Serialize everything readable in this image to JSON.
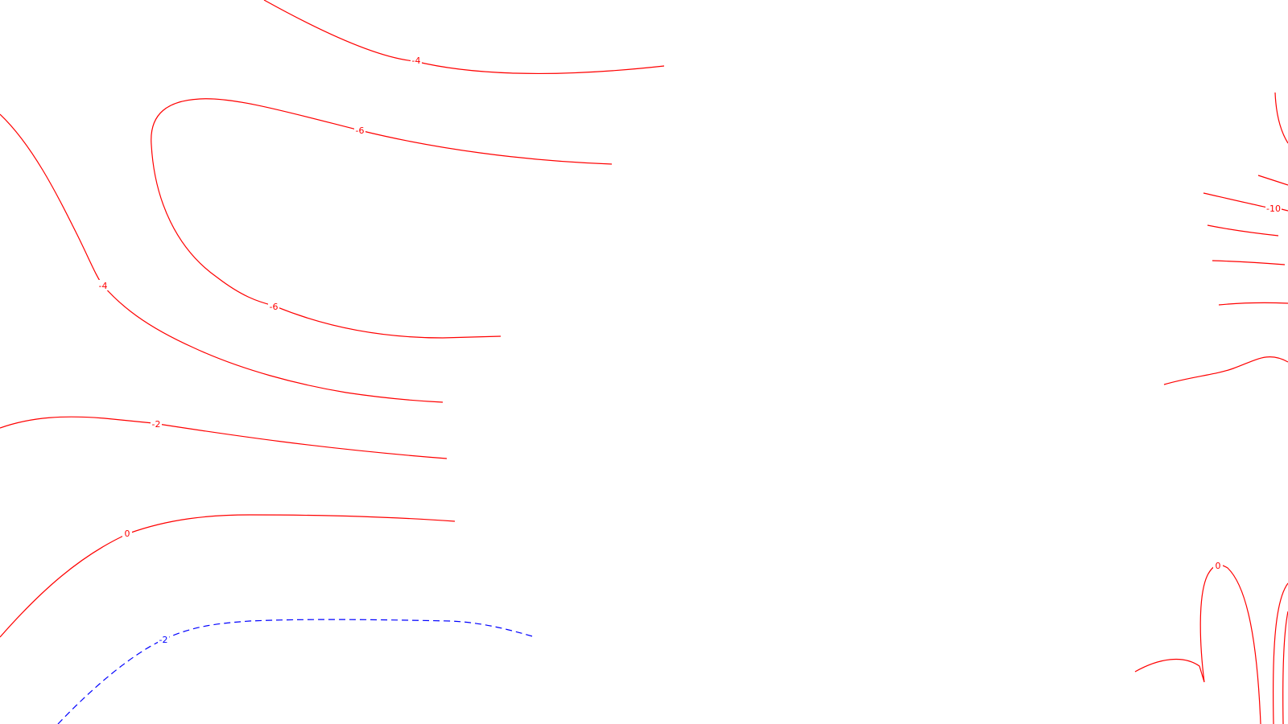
{
  "map": {
    "type": "contour-plot",
    "colors": {
      "positive": "#ff0000",
      "negative": "#0000ff",
      "background": "#ffffff"
    },
    "line_styles": {
      "red": "solid",
      "blue": "dashed"
    },
    "contour_labels": {
      "top_minus4": "-4",
      "upper_minus6": "-6",
      "left_minus4": "-4",
      "mid_minus6": "-6",
      "left_minus2": "-2",
      "left_zero": "0",
      "blue_minus2": "-2",
      "right_minus10": "-10",
      "right_zero": "0"
    }
  }
}
